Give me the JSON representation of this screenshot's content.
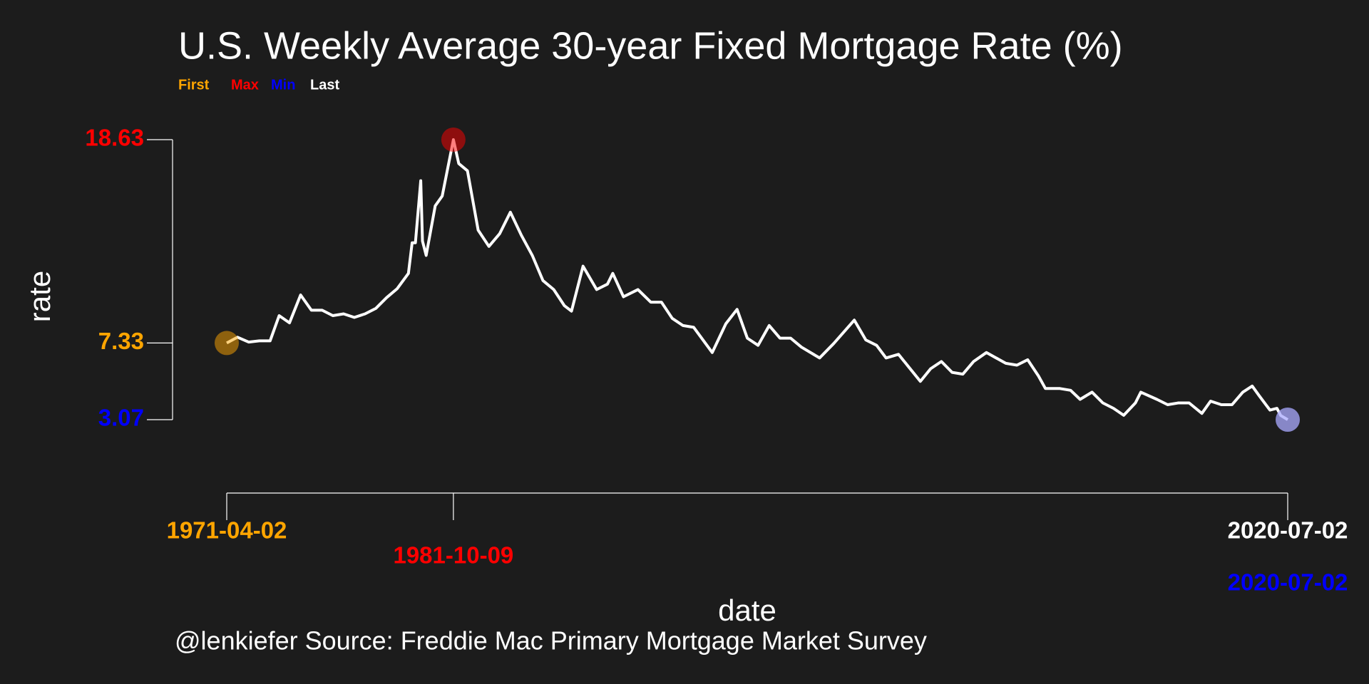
{
  "chart_data": {
    "type": "line",
    "title": "U.S. Weekly Average 30-year Fixed Mortgage Rate (%)",
    "caption": "@lenkiefer Source: Freddie Mac Primary Mortgage Market Survey",
    "xlabel": "date",
    "ylabel": "rate",
    "xlim": [
      "1971-04-02",
      "2020-07-02"
    ],
    "ylim": [
      3.07,
      18.63
    ],
    "series": [
      {
        "name": "rate",
        "color": "#ffffff",
        "x": [
          "1971-04-02",
          "1971-10-01",
          "1972-04-07",
          "1972-10-06",
          "1973-04-06",
          "1973-09-07",
          "1974-03-01",
          "1974-09-06",
          "1975-03-07",
          "1975-09-05",
          "1976-03-05",
          "1976-09-03",
          "1977-03-04",
          "1977-09-02",
          "1978-03-03",
          "1978-09-01",
          "1979-03-02",
          "1979-09-07",
          "1979-11-09",
          "1980-01-04",
          "1980-04-04",
          "1980-05-02",
          "1980-07-04",
          "1980-12-05",
          "1981-04-03",
          "1981-10-09",
          "1982-01-08",
          "1982-06-04",
          "1982-12-03",
          "1983-06-03",
          "1983-12-02",
          "1984-06-01",
          "1984-12-07",
          "1985-06-07",
          "1985-12-06",
          "1986-06-06",
          "1986-12-05",
          "1987-04-03",
          "1987-10-16",
          "1988-06-03",
          "1988-12-02",
          "1989-03-03",
          "1989-09-01",
          "1990-05-04",
          "1990-12-07",
          "1991-06-07",
          "1991-12-06",
          "1992-06-05",
          "1992-12-04",
          "1993-10-15",
          "1994-06-03",
          "1994-12-09",
          "1995-06-02",
          "1995-12-01",
          "1996-06-07",
          "1996-12-06",
          "1997-06-06",
          "1997-12-05",
          "1998-10-09",
          "1999-06-04",
          "2000-05-19",
          "2000-12-01",
          "2001-06-01",
          "2001-11-09",
          "2002-06-07",
          "2003-06-13",
          "2003-12-05",
          "2004-06-04",
          "2004-12-03",
          "2005-06-03",
          "2005-12-02",
          "2006-07-07",
          "2007-06-01",
          "2007-12-07",
          "2008-06-06",
          "2008-12-05",
          "2009-04-03",
          "2009-12-04",
          "2010-06-04",
          "2010-11-12",
          "2011-06-03",
          "2011-12-02",
          "2012-06-01",
          "2012-11-21",
          "2013-06-07",
          "2013-09-06",
          "2014-06-06",
          "2014-12-05",
          "2015-06-05",
          "2015-12-04",
          "2016-07-08",
          "2016-12-02",
          "2017-06-02",
          "2017-12-01",
          "2018-06-01",
          "2018-11-08",
          "2019-03-07",
          "2019-09-05",
          "2020-01-02",
          "2020-03-05",
          "2020-07-02"
        ],
        "values": [
          7.33,
          7.65,
          7.38,
          7.45,
          7.45,
          8.85,
          8.45,
          10.0,
          9.15,
          9.15,
          8.85,
          8.95,
          8.75,
          8.95,
          9.25,
          9.85,
          10.35,
          11.2,
          12.9,
          12.9,
          16.35,
          13.0,
          12.2,
          14.95,
          15.5,
          18.63,
          17.3,
          16.9,
          13.6,
          12.7,
          13.4,
          14.6,
          13.3,
          12.2,
          10.8,
          10.3,
          9.4,
          9.1,
          11.6,
          10.3,
          10.6,
          11.2,
          9.9,
          10.3,
          9.6,
          9.6,
          8.7,
          8.3,
          8.2,
          6.8,
          8.4,
          9.2,
          7.6,
          7.2,
          8.3,
          7.6,
          7.6,
          7.1,
          6.5,
          7.3,
          8.6,
          7.5,
          7.2,
          6.5,
          6.7,
          5.2,
          5.9,
          6.3,
          5.7,
          5.6,
          6.3,
          6.8,
          6.2,
          6.1,
          6.4,
          5.5,
          4.8,
          4.8,
          4.7,
          4.2,
          4.6,
          4.0,
          3.7,
          3.31,
          4.0,
          4.6,
          4.2,
          3.9,
          4.0,
          4.0,
          3.42,
          4.1,
          3.9,
          3.9,
          4.6,
          4.94,
          4.4,
          3.6,
          3.7,
          3.3,
          3.07
        ]
      }
    ],
    "markers": [
      {
        "name": "First",
        "color": "#ffa500",
        "x": "1971-04-02",
        "y": 7.33
      },
      {
        "name": "Max",
        "color": "#ff0000",
        "x": "1981-10-09",
        "y": 18.63
      },
      {
        "name": "Min",
        "color": "#0000ff",
        "x": "2020-07-02",
        "y": 3.07
      },
      {
        "name": "Last",
        "color": "#ffffff",
        "x": "2020-07-02",
        "y": 3.07
      }
    ]
  }
}
